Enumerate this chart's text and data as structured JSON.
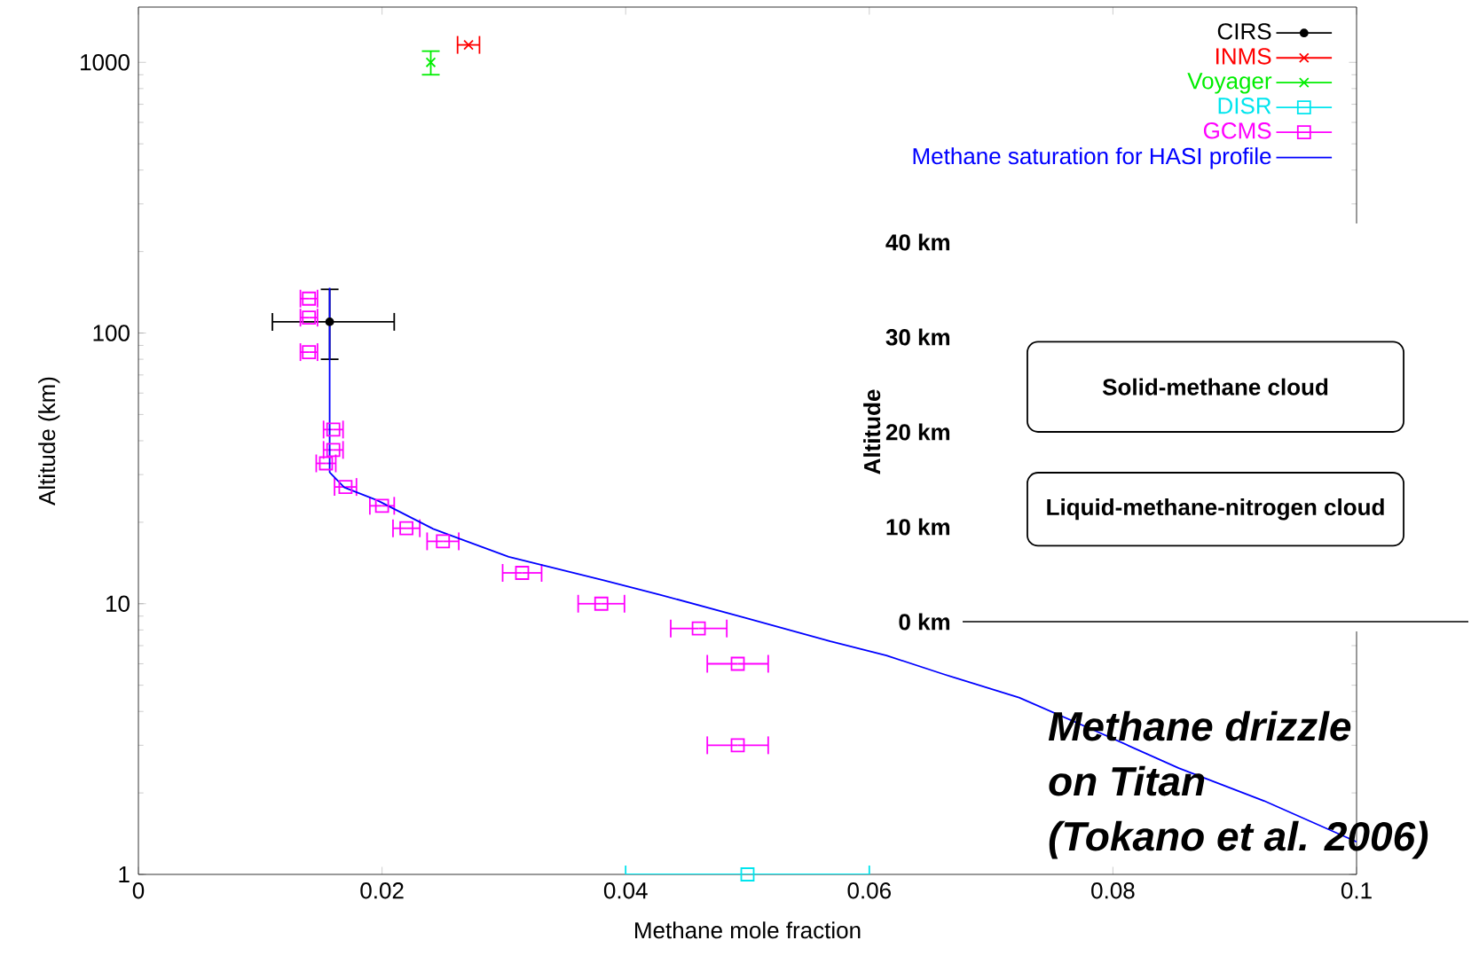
{
  "chart_data": [
    {
      "type": "scatter",
      "xlabel": "Methane mole fraction",
      "ylabel": "Altitude (km)",
      "xlim": [
        0,
        0.1
      ],
      "ylim": [
        1,
        1600
      ],
      "xticks": [
        0,
        0.02,
        0.04,
        0.06,
        0.08,
        0.1
      ],
      "yticks": [
        1,
        10,
        100,
        1000
      ],
      "log": "y",
      "legend": "top right",
      "annotations": [
        "Methane drizzle",
        "on Titan",
        "(Tokano et al. 2006)"
      ],
      "series": [
        {
          "name": "CIRS",
          "color": "#000000",
          "marker": "circle",
          "x": [
            0.0157
          ],
          "values": [
            110
          ],
          "xerrors": [
            [
              0.011,
              0.021
            ]
          ],
          "errors": [
            [
              80,
              145
            ]
          ]
        },
        {
          "name": "INMS",
          "color": "#ff0000",
          "marker": "cross",
          "x": [
            0.0271
          ],
          "values": [
            1160
          ],
          "xerrors": [
            [
              0.0262,
              0.028
            ]
          ]
        },
        {
          "name": "Voyager",
          "color": "#00ee00",
          "marker": "cross",
          "x": [
            0.024
          ],
          "values": [
            1000
          ],
          "errors": [
            [
              900,
              1100
            ]
          ]
        },
        {
          "name": "DISR",
          "color": "#00e5ee",
          "marker": "square",
          "x": [
            0.05
          ],
          "values": [
            1
          ],
          "xerrors": [
            [
              0.04,
              0.06
            ]
          ]
        },
        {
          "name": "GCMS",
          "color": "#ff00ff",
          "marker": "square",
          "x": [
            0.014,
            0.014,
            0.014,
            0.016,
            0.016,
            0.0154,
            0.017,
            0.02,
            0.022,
            0.025,
            0.0315,
            0.038,
            0.046,
            0.0492,
            0.0492
          ],
          "values": [
            134,
            114,
            85,
            44,
            37,
            33,
            27,
            23,
            19,
            17,
            13,
            10,
            8.1,
            6,
            3
          ],
          "xerrors": [
            0.0007,
            0.0007,
            0.0007,
            0.0008,
            0.0008,
            0.0008,
            0.0009,
            0.001,
            0.0011,
            0.0013,
            0.0016,
            0.0019,
            0.0023,
            0.0025,
            0.0025
          ]
        },
        {
          "name": "Methane saturation for HASI profile",
          "color": "#0000ff",
          "type": "line",
          "marker": "none",
          "x": [
            0.0157,
            0.0157,
            0.0169,
            0.0196,
            0.0242,
            0.0304,
            0.0382,
            0.0428,
            0.0498,
            0.0568,
            0.0614,
            0.0661,
            0.0723,
            0.0785,
            0.0854,
            0.0924,
            0.1
          ],
          "values": [
            147,
            30.6,
            26.9,
            24.1,
            18.9,
            14.9,
            12.2,
            10.8,
            8.87,
            7.26,
            6.44,
            5.49,
            4.5,
            3.4,
            2.47,
            1.87,
            1.32
          ]
        }
      ]
    },
    {
      "type": "bar",
      "ylabel": "Altitude",
      "categories": [
        null
      ],
      "ylim": [
        0,
        40
      ],
      "yticks": [
        {
          "value": 0,
          "label": "0 km"
        },
        {
          "value": 10,
          "label": "10 km"
        },
        {
          "value": 20,
          "label": "20 km"
        },
        {
          "value": 30,
          "label": "30 km"
        },
        {
          "value": 40,
          "label": "40 km"
        }
      ],
      "tick_labels": "y",
      "series": [
        {
          "name": "Solid-methane cloud",
          "color": "#ffffff",
          "base": [
            20
          ],
          "values": [
            9.5
          ]
        },
        {
          "name": "Liquid-methane-nitrogen cloud",
          "color": "#ffffff",
          "base": [
            8
          ],
          "values": [
            7.7
          ]
        }
      ]
    }
  ]
}
